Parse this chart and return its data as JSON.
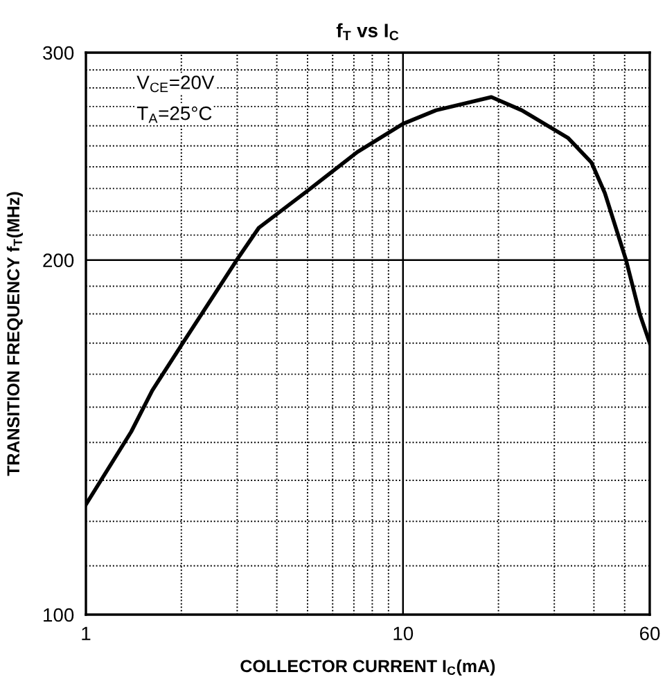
{
  "chart_data": {
    "type": "line",
    "title": "f$_{T}$ vs I$_{C}$",
    "xlabel": "COLLECTOR CURRENT I$_{C}$(mA)",
    "ylabel": "TRANSITION FREQUENCY f$_{T}$(MHz)",
    "annotations": [
      "V$_{CE}$=20V",
      "T$_{A}$=25°C"
    ],
    "log": "xy",
    "grid": true,
    "marker": "none",
    "line_style": "solid",
    "xlim": [
      1,
      60
    ],
    "ylim": [
      100,
      300
    ],
    "xticks": [
      1,
      {
        "value": 2,
        "label": null
      },
      {
        "value": 3,
        "label": null
      },
      {
        "value": 4,
        "label": null
      },
      {
        "value": 5,
        "label": null
      },
      {
        "value": 6,
        "label": null
      },
      {
        "value": 7,
        "label": null
      },
      {
        "value": 8,
        "label": null
      },
      {
        "value": 9,
        "label": null
      },
      10,
      {
        "value": 20,
        "label": null
      },
      {
        "value": 30,
        "label": null
      },
      {
        "value": 40,
        "label": null
      },
      {
        "value": 50,
        "label": null
      },
      60
    ],
    "yticks": [
      100,
      {
        "value": 110,
        "label": null
      },
      {
        "value": 120,
        "label": null
      },
      {
        "value": 130,
        "label": null
      },
      {
        "value": 140,
        "label": null
      },
      {
        "value": 150,
        "label": null
      },
      {
        "value": 160,
        "label": null
      },
      {
        "value": 170,
        "label": null
      },
      {
        "value": 180,
        "label": null
      },
      {
        "value": 190,
        "label": null
      },
      200,
      {
        "value": 210,
        "label": null
      },
      {
        "value": 220,
        "label": null
      },
      {
        "value": 230,
        "label": null
      },
      {
        "value": 240,
        "label": null
      },
      {
        "value": 250,
        "label": null
      },
      {
        "value": 260,
        "label": null
      },
      {
        "value": 270,
        "label": null
      },
      {
        "value": 280,
        "label": null
      },
      {
        "value": 290,
        "label": null
      },
      300
    ],
    "series": [
      {
        "color": "#000000",
        "x": [
          1,
          1.39,
          1.62,
          2.02,
          2.99,
          3.51,
          5.0,
          7.18,
          10,
          12.7,
          19,
          23.7,
          33.1,
          39.3,
          43.3,
          50.5,
          55.8,
          60
        ],
        "values": [
          124,
          143,
          155,
          170,
          200,
          213,
          229,
          247,
          261,
          268,
          275,
          268,
          254,
          242,
          228,
          200,
          180,
          170
        ]
      }
    ]
  }
}
